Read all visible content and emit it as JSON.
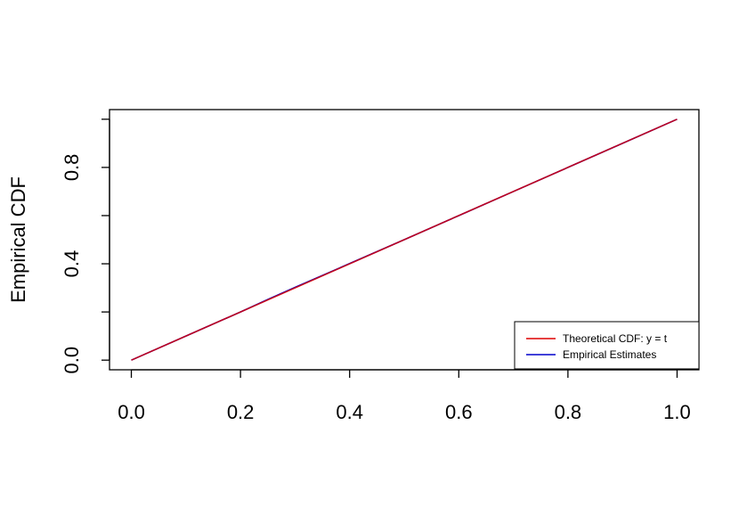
{
  "chart_data": {
    "type": "line",
    "title": "",
    "xlabel": "",
    "ylabel": "Empirical CDF",
    "xlim": [
      -0.04,
      1.04
    ],
    "ylim": [
      -0.04,
      1.04
    ],
    "x_ticks": [
      0.0,
      0.2,
      0.4,
      0.6,
      0.8,
      1.0
    ],
    "x_tick_labels": [
      "0.0",
      "0.2",
      "0.4",
      "0.6",
      "0.8",
      "1.0"
    ],
    "y_ticks": [
      0.0,
      0.2,
      0.4,
      0.6,
      0.8,
      1.0
    ],
    "y_tick_labels": [
      "0.0",
      "",
      "0.4",
      "",
      "0.8",
      ""
    ],
    "grid": false,
    "legend_position": "bottom-right",
    "series": [
      {
        "name": "Empirical Estimates",
        "color": "#0000cc",
        "x": [
          0.0,
          0.1,
          0.2,
          0.25,
          0.3,
          0.4,
          0.5,
          0.6,
          0.7,
          0.8,
          0.9,
          1.0
        ],
        "y": [
          0.0,
          0.1,
          0.2,
          0.252,
          0.302,
          0.401,
          0.5,
          0.6,
          0.7,
          0.8,
          0.9,
          1.0
        ]
      },
      {
        "name": "Theoretical CDF: y = t",
        "color": "#dd0000",
        "x": [
          0.0,
          1.0
        ],
        "y": [
          0.0,
          1.0
        ]
      }
    ],
    "legend": [
      {
        "label": "Theoretical CDF: y = t",
        "color": "#dd0000"
      },
      {
        "label": "Empirical Estimates",
        "color": "#0000cc"
      }
    ]
  }
}
